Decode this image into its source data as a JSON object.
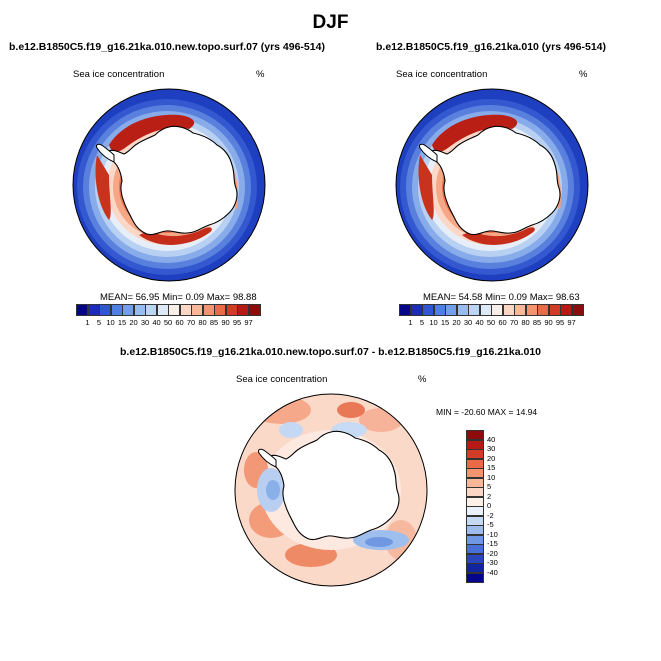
{
  "page_title": "DJF",
  "panels": [
    {
      "id": "case",
      "title": "b.e12.B1850C5.f19_g16.21ka.010.new.topo.surf.07 (yrs 496-514)",
      "left_label": "Sea ice concentration",
      "right_label": "%",
      "stats": {
        "mean_label": "MEAN=",
        "mean": "56.95",
        "min_label": "Min=",
        "min": "0.09",
        "max_label": "Max=",
        "max": "98.88"
      }
    },
    {
      "id": "control",
      "title": "b.e12.B1850C5.f19_g16.21ka.010 (yrs 496-514)",
      "left_label": "Sea ice concentration",
      "right_label": "%",
      "stats": {
        "mean_label": "MEAN=",
        "mean": "54.58",
        "min_label": "Min=",
        "min": "0.09",
        "max_label": "Max=",
        "max": "98.63"
      }
    }
  ],
  "difference": {
    "title": "b.e12.B1850C5.f19_g16.21ka.010.new.topo.surf.07 - b.e12.B1850C5.f19_g16.21ka.010",
    "left_label": "Sea ice concentration",
    "right_label": "%",
    "minmax": "MIN = -20.60 MAX =  14.94"
  },
  "chart_data": [
    {
      "type": "heatmap",
      "projection": "south polar stereographic",
      "title": "b.e12.B1850C5.f19_g16.21ka.010.new.topo.surf.07 (yrs 496-514)",
      "variable": "Sea ice concentration",
      "units": "%",
      "stats": {
        "mean": 56.95,
        "min": 0.09,
        "max": 98.88
      },
      "contour_levels": [
        1,
        5,
        10,
        15,
        20,
        30,
        40,
        50,
        60,
        70,
        80,
        85,
        90,
        95,
        97
      ],
      "colorbar_orientation": "horizontal"
    },
    {
      "type": "heatmap",
      "projection": "south polar stereographic",
      "title": "b.e12.B1850C5.f19_g16.21ka.010 (yrs 496-514)",
      "variable": "Sea ice concentration",
      "units": "%",
      "stats": {
        "mean": 54.58,
        "min": 0.09,
        "max": 98.63
      },
      "contour_levels": [
        1,
        5,
        10,
        15,
        20,
        30,
        40,
        50,
        60,
        70,
        80,
        85,
        90,
        95,
        97
      ],
      "colorbar_orientation": "horizontal"
    },
    {
      "type": "heatmap",
      "projection": "south polar stereographic",
      "title": "b.e12.B1850C5.f19_g16.21ka.010.new.topo.surf.07 - b.e12.B1850C5.f19_g16.21ka.010",
      "variable": "Sea ice concentration",
      "units": "%",
      "stats": {
        "min": -20.6,
        "max": 14.94
      },
      "contour_levels": [
        40,
        30,
        20,
        15,
        10,
        5,
        2,
        0,
        -2,
        -5,
        -10,
        -15,
        -20,
        -30,
        -40
      ],
      "colorbar_orientation": "vertical"
    }
  ],
  "colorbar_abs": {
    "labels": [
      "1",
      "5",
      "10",
      "15",
      "20",
      "30",
      "40",
      "50",
      "60",
      "70",
      "80",
      "85",
      "90",
      "95",
      "97"
    ],
    "colors": [
      "#05058a",
      "#1c2cb8",
      "#3156d4",
      "#4f7ee4",
      "#729fec",
      "#97bdf0",
      "#bcd5f4",
      "#dde9f6",
      "#f8efe9",
      "#fbd6c4",
      "#f8b799",
      "#f3946e",
      "#e86a47",
      "#d23c27",
      "#b51a14",
      "#8c0b0b"
    ]
  },
  "colorbar_diff": {
    "labels": [
      "40",
      "30",
      "20",
      "15",
      "10",
      "5",
      "2",
      "0",
      "-2",
      "-5",
      "-10",
      "-15",
      "-20",
      "-30",
      "-40"
    ],
    "colors": [
      "#8c0b0b",
      "#b51a14",
      "#d23c27",
      "#e86a47",
      "#f3946e",
      "#f8b799",
      "#fbd6c4",
      "#fdf0e8",
      "#ebf1fa",
      "#c6d9f2",
      "#9dbcec",
      "#6f98e4",
      "#4670d8",
      "#2a46bd",
      "#13259c",
      "#05058a"
    ]
  }
}
